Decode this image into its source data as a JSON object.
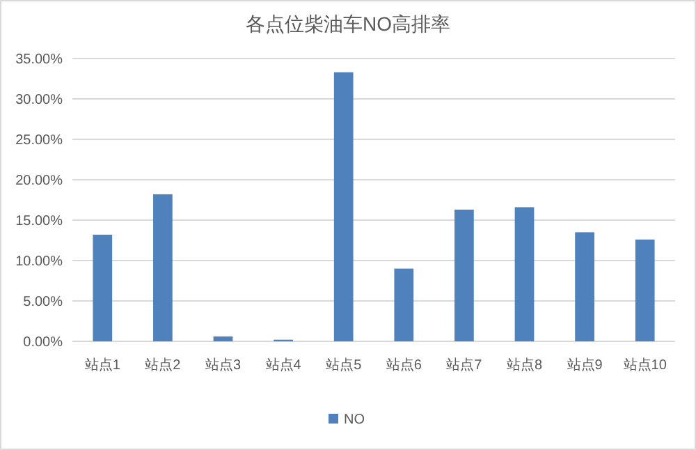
{
  "chart_data": {
    "type": "bar",
    "title": "各点位柴油车NO高排率",
    "categories": [
      "站点1",
      "站点2",
      "站点3",
      "站点4",
      "站点5",
      "站点6",
      "站点7",
      "站点8",
      "站点9",
      "站点10"
    ],
    "series": [
      {
        "name": "NO",
        "color": "#4f81bd",
        "values": [
          13.2,
          18.2,
          0.6,
          0.2,
          33.3,
          9.0,
          16.3,
          16.6,
          13.5,
          12.6
        ]
      }
    ],
    "ylim": [
      0,
      35
    ],
    "yticks": [
      {
        "value": 0,
        "label": "0.00%"
      },
      {
        "value": 5,
        "label": "5.00%"
      },
      {
        "value": 10,
        "label": "10.00%"
      },
      {
        "value": 15,
        "label": "15.00%"
      },
      {
        "value": 20,
        "label": "20.00%"
      },
      {
        "value": 25,
        "label": "25.00%"
      },
      {
        "value": 30,
        "label": "30.00%"
      },
      {
        "value": 35,
        "label": "35.00%"
      }
    ],
    "grid": "y",
    "legend": "bottom"
  }
}
